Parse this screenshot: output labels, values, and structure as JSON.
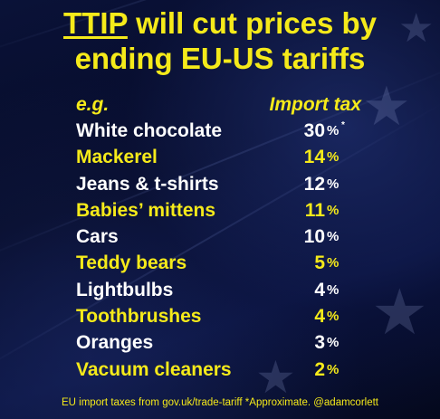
{
  "title": {
    "brand": "TTIP",
    "line1_rest": " will cut prices by",
    "line2": "ending EU-US tariffs"
  },
  "table": {
    "left_header": "e.g.",
    "right_header": "Import tax",
    "rows": [
      {
        "item": "White chocolate",
        "value": "30",
        "unit": "%",
        "mark": "*"
      },
      {
        "item": "Mackerel",
        "value": "14",
        "unit": "%"
      },
      {
        "item": "Jeans & t-shirts",
        "value": "12",
        "unit": "%"
      },
      {
        "item": "Babies’ mittens",
        "value": "11",
        "unit": "%"
      },
      {
        "item": "Cars",
        "value": "10",
        "unit": "%"
      },
      {
        "item": "Teddy bears",
        "value": "5",
        "unit": "%"
      },
      {
        "item": "Lightbulbs",
        "value": "4",
        "unit": "%"
      },
      {
        "item": "Toothbrushes",
        "value": "4",
        "unit": "%"
      },
      {
        "item": "Oranges",
        "value": "3",
        "unit": "%"
      },
      {
        "item": "Vacuum cleaners",
        "value": "2",
        "unit": "%"
      }
    ]
  },
  "footer": "EU import taxes from gov.uk/trade-tariff  *Approximate.  @adamcorlett",
  "colors": {
    "accent_yellow": "#f5ea1a",
    "text_white": "#ffffff",
    "background": "#0a1238"
  }
}
